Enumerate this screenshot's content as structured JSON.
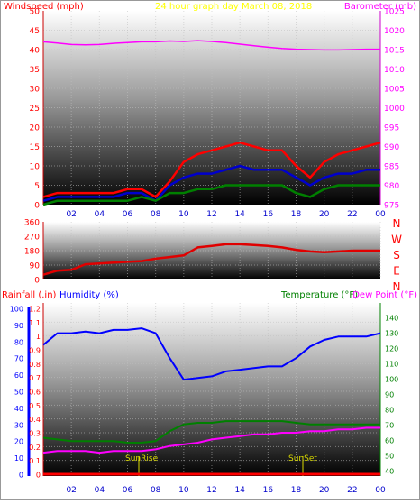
{
  "colors": {
    "windspeed": "#ff0000",
    "windspeed_avg": "#0000cc",
    "windspeed_min": "#008000",
    "barometer": "#ff00ff",
    "title": "#ffff00",
    "direction": "#e00000",
    "rainfall": "#ff0000",
    "humidity": "#0000ff",
    "temperature": "#008000",
    "dew_point": "#ff00ff",
    "sunrise_sunset": "#d8d800"
  },
  "top_chart": {
    "windspeed_label": "Windspeed (mph)",
    "title": "24 hour graph day   March 08, 2018",
    "barometer_label": "Barometer (mb)",
    "windspeed_ticks": [
      "50",
      "45",
      "40",
      "35",
      "30",
      "25",
      "20",
      "15",
      "10",
      "5",
      "0"
    ],
    "barometer_ticks": [
      "1025",
      "1020",
      "1015",
      "1010",
      "1005",
      "1000",
      "995",
      "990",
      "985",
      "980",
      "975"
    ],
    "x_ticks": [
      "02",
      "04",
      "06",
      "08",
      "10",
      "12",
      "14",
      "16",
      "18",
      "20",
      "22",
      "00"
    ]
  },
  "middle_chart": {
    "direction_ticks": [
      "360",
      "270",
      "180",
      "90",
      "0"
    ],
    "compass_labels": [
      "N",
      "W",
      "S",
      "E",
      "N"
    ]
  },
  "bottom_chart": {
    "rainfall_label": "Rainfall (.in)",
    "humidity_label": "Humidity (%)",
    "temperature_label": "Temperature (°F)",
    "dew_point_label": "Dew Point (°F)",
    "humidity_ticks": [
      "100",
      "90",
      "80",
      "70",
      "60",
      "50",
      "40",
      "30",
      "20",
      "10",
      "0"
    ],
    "rainfall_ticks": [
      "1.2",
      "1.1",
      "1",
      "0.9",
      "0.8",
      "0.7",
      "0.6",
      "0.5",
      "0.4",
      "0.3",
      "0.2",
      "0.1",
      "0"
    ],
    "temperature_ticks": [
      "140",
      "130",
      "120",
      "110",
      "100",
      "90",
      "80",
      "70",
      "60",
      "50",
      "40"
    ],
    "x_ticks": [
      "02",
      "04",
      "06",
      "08",
      "10",
      "12",
      "14",
      "16",
      "18",
      "20",
      "22",
      "00"
    ],
    "sunrise_label": "SunRise",
    "sunset_label": "SunSet"
  },
  "chart_data": [
    {
      "type": "line",
      "title": "24 hour graph day   March 08, 2018",
      "xlabel": "",
      "ylabel": "Windspeed (mph)",
      "y2label": "Barometer (mb)",
      "ylim": [
        0,
        50
      ],
      "y2lim": [
        975,
        1025
      ],
      "x": [
        0,
        1,
        2,
        3,
        4,
        5,
        6,
        7,
        8,
        9,
        10,
        11,
        12,
        13,
        14,
        15,
        16,
        17,
        18,
        19,
        20,
        21,
        22,
        23,
        24
      ],
      "series": [
        {
          "name": "Windspeed (mph)",
          "axis": "left",
          "values": [
            2,
            3,
            3,
            3,
            3,
            3,
            4,
            4,
            2,
            6,
            11,
            13,
            14,
            15,
            16,
            15,
            14,
            14,
            10,
            7,
            11,
            13,
            14,
            15,
            16
          ]
        },
        {
          "name": "",
          "axis": "left",
          "values": [
            1,
            2,
            2,
            2,
            2,
            2,
            3,
            3,
            1,
            5,
            7,
            8,
            8,
            9,
            10,
            9,
            9,
            9,
            7,
            5,
            7,
            8,
            8,
            9,
            9
          ]
        },
        {
          "name": "",
          "axis": "left",
          "values": [
            0,
            1,
            1,
            1,
            1,
            1,
            1,
            2,
            1,
            3,
            3,
            4,
            4,
            5,
            5,
            5,
            5,
            5,
            3,
            2,
            4,
            5,
            5,
            5,
            5
          ]
        },
        {
          "name": "Barometer (mb)",
          "axis": "right",
          "values": [
            1017,
            1016.7,
            1016.3,
            1016.2,
            1016.3,
            1016.6,
            1016.8,
            1017,
            1017,
            1017.2,
            1017.1,
            1017.3,
            1017.1,
            1016.8,
            1016.4,
            1016,
            1015.6,
            1015.3,
            1015.1,
            1015,
            1014.9,
            1014.9,
            1015,
            1015.1,
            1015.1
          ]
        }
      ]
    },
    {
      "type": "line",
      "ylabel": "",
      "ylim": [
        0,
        360
      ],
      "x": [
        0,
        1,
        2,
        3,
        4,
        5,
        6,
        7,
        8,
        9,
        10,
        11,
        12,
        13,
        14,
        15,
        16,
        17,
        18,
        19,
        20,
        21,
        22,
        23,
        24
      ],
      "series": [
        {
          "name": "",
          "values": [
            30,
            55,
            60,
            95,
            100,
            105,
            110,
            115,
            130,
            140,
            150,
            200,
            210,
            220,
            220,
            215,
            210,
            200,
            185,
            175,
            170,
            175,
            180,
            180,
            180
          ]
        }
      ]
    },
    {
      "type": "line",
      "xlabel": "",
      "ylabel": "Humidity (%)",
      "y2label": "Temperature (°F)",
      "ylim": [
        0,
        100
      ],
      "y2lim": [
        40,
        140
      ],
      "rain_lim": [
        0,
        1.2
      ],
      "x": [
        0,
        1,
        2,
        3,
        4,
        5,
        6,
        7,
        8,
        9,
        10,
        11,
        12,
        13,
        14,
        15,
        16,
        17,
        18,
        19,
        20,
        21,
        22,
        23,
        24
      ],
      "series": [
        {
          "name": "Humidity (%)",
          "axis": "left",
          "values": [
            78,
            85,
            85,
            86,
            85,
            87,
            87,
            88,
            85,
            70,
            57,
            58,
            59,
            62,
            63,
            64,
            65,
            65,
            70,
            77,
            81,
            83,
            83,
            83,
            85
          ]
        },
        {
          "name": "Temperature (°F)",
          "axis": "right",
          "values": [
            62,
            61,
            60,
            60,
            60,
            60,
            59,
            59,
            60,
            66,
            70,
            71,
            71,
            72,
            72,
            72,
            72,
            72,
            71,
            70,
            70,
            70,
            70,
            70,
            70
          ]
        },
        {
          "name": "Dew Point (°F)",
          "axis": "right",
          "values": [
            53,
            54,
            54,
            54,
            53,
            54,
            54,
            54,
            55,
            57,
            58,
            59,
            61,
            62,
            63,
            64,
            64,
            65,
            65,
            66,
            66,
            67,
            67,
            68,
            68
          ]
        },
        {
          "name": "Rainfall (.in)",
          "axis": "rain",
          "values": [
            0,
            0,
            0,
            0,
            0,
            0,
            0,
            0,
            0,
            0,
            0,
            0,
            0,
            0,
            0,
            0,
            0,
            0,
            0,
            0,
            0,
            0,
            0,
            0,
            0
          ]
        }
      ]
    }
  ]
}
